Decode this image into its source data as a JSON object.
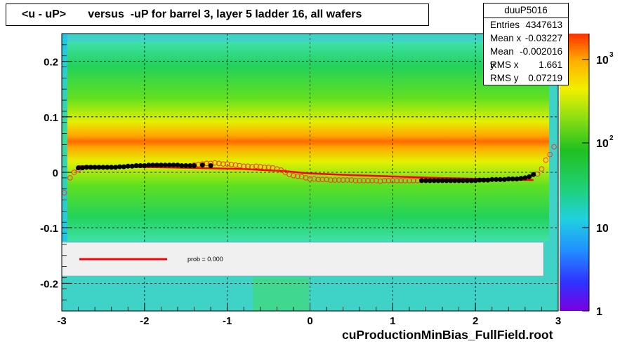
{
  "title": "<u - uP>       versus  -uP for barrel 3, layer 5 ladder 16, all wafers",
  "stats": {
    "name": "duuP5016",
    "rows": [
      {
        "label": "Entries",
        "value": "4347613"
      },
      {
        "label": "Mean x",
        "value": "-0.03227"
      },
      {
        "label": "Mean y",
        "value": "-0.002016"
      },
      {
        "label": "RMS x",
        "value": "1.661"
      },
      {
        "label": "RMS y",
        "value": "0.07219"
      }
    ]
  },
  "footer": "cuProductionMinBias_FullField.root",
  "legend": {
    "text": "prob = 0.000"
  },
  "colorbar": {
    "tick_labels": [
      "1",
      "10",
      "10",
      "10"
    ],
    "exponents": [
      "",
      "",
      "2",
      "3"
    ],
    "scale": "log"
  },
  "colors": {
    "fit_line": "#ff0000",
    "profile_black": "#000000",
    "profile_open": "#ff3030",
    "legend_bg": "#f0f0f0"
  },
  "chart_data": {
    "type": "heatmap",
    "xlim": [
      -3,
      3
    ],
    "ylim": [
      -0.25,
      0.25
    ],
    "x_ticks": [
      "-3",
      "-2",
      "-1",
      "0",
      "1",
      "2",
      "3"
    ],
    "y_ticks": [
      "-0.2",
      "-0.1",
      "0",
      "0.1",
      "0.2"
    ],
    "grid": true,
    "profile_filled": {
      "x": [
        -2.8,
        -2.75,
        -2.7,
        -2.65,
        -2.6,
        -2.55,
        -2.5,
        -2.45,
        -2.4,
        -2.35,
        -2.3,
        -2.25,
        -2.2,
        -2.15,
        -2.1,
        -2.05,
        -2.0,
        -1.95,
        -1.9,
        -1.85,
        -1.8,
        -1.75,
        -1.7,
        -1.65,
        -1.6,
        -1.55,
        -1.5,
        -1.45,
        -1.4,
        -1.3,
        -1.2,
        1.35,
        1.4,
        1.45,
        1.5,
        1.55,
        1.6,
        1.65,
        1.7,
        1.75,
        1.8,
        1.85,
        1.9,
        1.95,
        2.0,
        2.05,
        2.1,
        2.15,
        2.2,
        2.25,
        2.3,
        2.35,
        2.4,
        2.45,
        2.5,
        2.55,
        2.6,
        2.65,
        2.7
      ],
      "y": [
        0.008,
        0.008,
        0.009,
        0.009,
        0.009,
        0.009,
        0.009,
        0.009,
        0.009,
        0.009,
        0.01,
        0.01,
        0.011,
        0.011,
        0.012,
        0.012,
        0.012,
        0.013,
        0.013,
        0.013,
        0.013,
        0.013,
        0.013,
        0.013,
        0.013,
        0.012,
        0.012,
        0.012,
        0.012,
        0.013,
        0.012,
        -0.015,
        -0.015,
        -0.015,
        -0.015,
        -0.015,
        -0.015,
        -0.015,
        -0.015,
        -0.015,
        -0.015,
        -0.015,
        -0.015,
        -0.015,
        -0.015,
        -0.014,
        -0.014,
        -0.014,
        -0.013,
        -0.013,
        -0.013,
        -0.013,
        -0.012,
        -0.012,
        -0.012,
        -0.011,
        -0.01,
        -0.008,
        -0.004
      ]
    },
    "profile_open": {
      "x": [
        -2.97,
        -2.9,
        -2.85,
        -2.8,
        -1.4,
        -1.35,
        -1.3,
        -1.25,
        -1.2,
        -1.15,
        -1.1,
        -1.05,
        -1.0,
        -0.95,
        -0.9,
        -0.85,
        -0.8,
        -0.75,
        -0.7,
        -0.65,
        -0.6,
        -0.55,
        -0.5,
        -0.45,
        -0.4,
        -0.35,
        -0.3,
        -0.25,
        -0.2,
        -0.15,
        -0.1,
        -0.05,
        0.0,
        0.05,
        0.1,
        0.15,
        0.2,
        0.25,
        0.3,
        0.35,
        0.4,
        0.45,
        0.5,
        0.55,
        0.6,
        0.65,
        0.7,
        0.75,
        0.8,
        0.85,
        0.9,
        0.95,
        1.0,
        1.05,
        1.1,
        1.15,
        1.2,
        1.25,
        1.3,
        2.75,
        2.8,
        2.85,
        2.9,
        2.95
      ],
      "y": [
        -0.037,
        -0.01,
        0.0,
        0.005,
        0.013,
        0.014,
        0.015,
        0.016,
        0.016,
        0.017,
        0.016,
        0.015,
        0.015,
        0.014,
        0.013,
        0.012,
        0.011,
        0.011,
        0.01,
        0.011,
        0.01,
        0.009,
        0.009,
        0.008,
        0.006,
        0.004,
        0.0,
        -0.004,
        -0.006,
        -0.007,
        -0.008,
        -0.01,
        -0.012,
        -0.012,
        -0.013,
        -0.013,
        -0.013,
        -0.014,
        -0.014,
        -0.014,
        -0.014,
        -0.014,
        -0.014,
        -0.015,
        -0.015,
        -0.015,
        -0.015,
        -0.015,
        -0.015,
        -0.016,
        -0.015,
        -0.015,
        -0.015,
        -0.015,
        -0.015,
        -0.015,
        -0.015,
        -0.015,
        -0.015,
        -0.003,
        0.006,
        0.022,
        0.032,
        0.046
      ]
    },
    "fit_line": {
      "x": [
        -2.8,
        -1.8,
        -0.8,
        -0.3,
        0.0,
        0.5,
        1.5,
        2.7
      ],
      "y": [
        0.011,
        0.009,
        0.006,
        0.002,
        -0.002,
        -0.005,
        -0.01,
        -0.014
      ]
    }
  }
}
